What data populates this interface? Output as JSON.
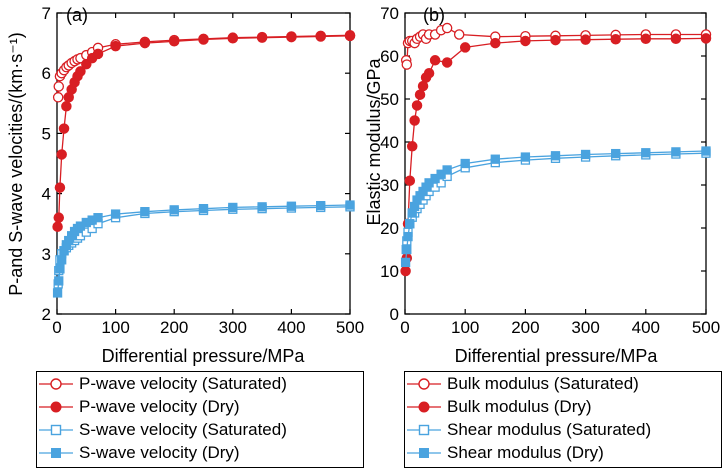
{
  "colors": {
    "red": "#d81e23",
    "blue": "#4aa3df",
    "axis": "#000000"
  },
  "chart_data": [
    {
      "type": "line",
      "panel_label": "(a)",
      "xlabel": "Differential pressure/MPa",
      "ylabel": "P-and S-wave velocities/(km·s⁻¹)",
      "xlim": [
        0,
        500
      ],
      "ylim": [
        2,
        7
      ],
      "xticks": [
        "0",
        "100",
        "200",
        "300",
        "400",
        "500"
      ],
      "yticks": [
        "2",
        "3",
        "4",
        "5",
        "6",
        "7"
      ],
      "grid": false,
      "legend_position": "below",
      "series": [
        {
          "name": "P-wave velocity (Saturated)",
          "color": "#d81e23",
          "marker": "circle-open",
          "points": [
            [
              2,
              5.6
            ],
            [
              3,
              5.78
            ],
            [
              5,
              5.95
            ],
            [
              8,
              6.0
            ],
            [
              12,
              6.05
            ],
            [
              16,
              6.1
            ],
            [
              20,
              6.13
            ],
            [
              25,
              6.17
            ],
            [
              30,
              6.2
            ],
            [
              35,
              6.23
            ],
            [
              40,
              6.25
            ],
            [
              50,
              6.3
            ],
            [
              60,
              6.35
            ],
            [
              70,
              6.42
            ],
            [
              100,
              6.48
            ],
            [
              150,
              6.52
            ],
            [
              200,
              6.55
            ],
            [
              250,
              6.57
            ],
            [
              300,
              6.59
            ],
            [
              350,
              6.6
            ],
            [
              400,
              6.61
            ],
            [
              450,
              6.62
            ],
            [
              500,
              6.63
            ]
          ]
        },
        {
          "name": "P-wave velocity (Dry)",
          "color": "#d81e23",
          "marker": "circle-filled",
          "points": [
            [
              1,
              3.45
            ],
            [
              3,
              3.6
            ],
            [
              5,
              4.1
            ],
            [
              8,
              4.65
            ],
            [
              12,
              5.08
            ],
            [
              16,
              5.45
            ],
            [
              20,
              5.6
            ],
            [
              25,
              5.73
            ],
            [
              30,
              5.85
            ],
            [
              35,
              5.95
            ],
            [
              40,
              6.03
            ],
            [
              50,
              6.15
            ],
            [
              60,
              6.25
            ],
            [
              70,
              6.32
            ],
            [
              100,
              6.45
            ],
            [
              150,
              6.5
            ],
            [
              200,
              6.53
            ],
            [
              250,
              6.56
            ],
            [
              300,
              6.58
            ],
            [
              350,
              6.59
            ],
            [
              400,
              6.6
            ],
            [
              450,
              6.61
            ],
            [
              500,
              6.62
            ]
          ]
        },
        {
          "name": "S-wave velocity (Saturated)",
          "color": "#4aa3df",
          "marker": "square-open",
          "points": [
            [
              2,
              2.5
            ],
            [
              3,
              2.72
            ],
            [
              5,
              2.9
            ],
            [
              8,
              3.0
            ],
            [
              12,
              3.05
            ],
            [
              16,
              3.1
            ],
            [
              20,
              3.14
            ],
            [
              25,
              3.18
            ],
            [
              30,
              3.22
            ],
            [
              35,
              3.26
            ],
            [
              40,
              3.3
            ],
            [
              50,
              3.36
            ],
            [
              60,
              3.42
            ],
            [
              70,
              3.5
            ],
            [
              100,
              3.6
            ],
            [
              150,
              3.67
            ],
            [
              200,
              3.7
            ],
            [
              250,
              3.72
            ],
            [
              300,
              3.74
            ],
            [
              350,
              3.75
            ],
            [
              400,
              3.76
            ],
            [
              450,
              3.77
            ],
            [
              500,
              3.78
            ]
          ]
        },
        {
          "name": "S-wave velocity (Dry)",
          "color": "#4aa3df",
          "marker": "square-filled",
          "points": [
            [
              1,
              2.35
            ],
            [
              3,
              2.55
            ],
            [
              5,
              2.75
            ],
            [
              8,
              2.9
            ],
            [
              12,
              3.05
            ],
            [
              16,
              3.15
            ],
            [
              20,
              3.22
            ],
            [
              25,
              3.3
            ],
            [
              30,
              3.37
            ],
            [
              35,
              3.42
            ],
            [
              40,
              3.46
            ],
            [
              50,
              3.52
            ],
            [
              60,
              3.56
            ],
            [
              70,
              3.6
            ],
            [
              100,
              3.66
            ],
            [
              150,
              3.7
            ],
            [
              200,
              3.73
            ],
            [
              250,
              3.75
            ],
            [
              300,
              3.77
            ],
            [
              350,
              3.78
            ],
            [
              400,
              3.79
            ],
            [
              450,
              3.8
            ],
            [
              500,
              3.81
            ]
          ]
        }
      ]
    },
    {
      "type": "line",
      "panel_label": "(b)",
      "xlabel": "Differential pressure/MPa",
      "ylabel": "Elastic modulus/GPa",
      "xlim": [
        0,
        500
      ],
      "ylim": [
        0,
        70
      ],
      "xticks": [
        "0",
        "100",
        "200",
        "300",
        "400",
        "500"
      ],
      "yticks": [
        "0",
        "10",
        "20",
        "30",
        "40",
        "50",
        "60",
        "70"
      ],
      "grid": false,
      "legend_position": "below",
      "series": [
        {
          "name": "Bulk modulus (Saturated)",
          "color": "#d81e23",
          "marker": "circle-open",
          "points": [
            [
              2,
              59
            ],
            [
              3,
              58
            ],
            [
              5,
              63
            ],
            [
              8,
              63.5
            ],
            [
              12,
              63.5
            ],
            [
              16,
              63
            ],
            [
              20,
              64
            ],
            [
              25,
              64.5
            ],
            [
              30,
              65
            ],
            [
              35,
              64
            ],
            [
              40,
              65
            ],
            [
              50,
              65
            ],
            [
              60,
              66
            ],
            [
              70,
              66.5
            ],
            [
              90,
              65
            ],
            [
              150,
              64.5
            ],
            [
              200,
              64.6
            ],
            [
              250,
              64.7
            ],
            [
              300,
              64.8
            ],
            [
              350,
              64.9
            ],
            [
              400,
              65
            ],
            [
              450,
              65
            ],
            [
              500,
              65
            ]
          ]
        },
        {
          "name": "Bulk modulus (Dry)",
          "color": "#d81e23",
          "marker": "circle-filled",
          "points": [
            [
              1,
              10
            ],
            [
              3,
              13
            ],
            [
              5,
              21
            ],
            [
              8,
              31
            ],
            [
              12,
              39
            ],
            [
              16,
              45
            ],
            [
              20,
              48.5
            ],
            [
              25,
              51
            ],
            [
              30,
              53
            ],
            [
              35,
              55
            ],
            [
              40,
              56
            ],
            [
              50,
              59
            ],
            [
              70,
              58.5
            ],
            [
              100,
              62
            ],
            [
              150,
              63
            ],
            [
              200,
              63.5
            ],
            [
              250,
              63.7
            ],
            [
              300,
              63.8
            ],
            [
              350,
              63.9
            ],
            [
              400,
              64
            ],
            [
              450,
              64
            ],
            [
              500,
              64.1
            ]
          ]
        },
        {
          "name": "Shear modulus (Saturated)",
          "color": "#4aa3df",
          "marker": "square-open",
          "points": [
            [
              2,
              15
            ],
            [
              3,
              17
            ],
            [
              5,
              19
            ],
            [
              8,
              21
            ],
            [
              12,
              22.5
            ],
            [
              16,
              23.5
            ],
            [
              20,
              24.5
            ],
            [
              25,
              25.5
            ],
            [
              30,
              26.5
            ],
            [
              35,
              27.5
            ],
            [
              40,
              28.5
            ],
            [
              50,
              29.5
            ],
            [
              60,
              30.5
            ],
            [
              70,
              32
            ],
            [
              100,
              34
            ],
            [
              150,
              35.2
            ],
            [
              200,
              35.8
            ],
            [
              250,
              36.2
            ],
            [
              300,
              36.5
            ],
            [
              350,
              36.8
            ],
            [
              400,
              37
            ],
            [
              450,
              37.2
            ],
            [
              500,
              37.4
            ]
          ]
        },
        {
          "name": "Shear modulus (Dry)",
          "color": "#4aa3df",
          "marker": "square-filled",
          "points": [
            [
              1,
              12
            ],
            [
              3,
              15
            ],
            [
              5,
              18
            ],
            [
              8,
              21
            ],
            [
              12,
              23.5
            ],
            [
              16,
              25
            ],
            [
              20,
              26.5
            ],
            [
              25,
              27.5
            ],
            [
              30,
              28.5
            ],
            [
              35,
              29.5
            ],
            [
              40,
              30.5
            ],
            [
              50,
              31.5
            ],
            [
              60,
              32.5
            ],
            [
              70,
              33.5
            ],
            [
              100,
              35
            ],
            [
              150,
              36
            ],
            [
              200,
              36.5
            ],
            [
              250,
              36.8
            ],
            [
              300,
              37.1
            ],
            [
              350,
              37.3
            ],
            [
              400,
              37.5
            ],
            [
              450,
              37.7
            ],
            [
              500,
              37.9
            ]
          ]
        }
      ]
    }
  ]
}
